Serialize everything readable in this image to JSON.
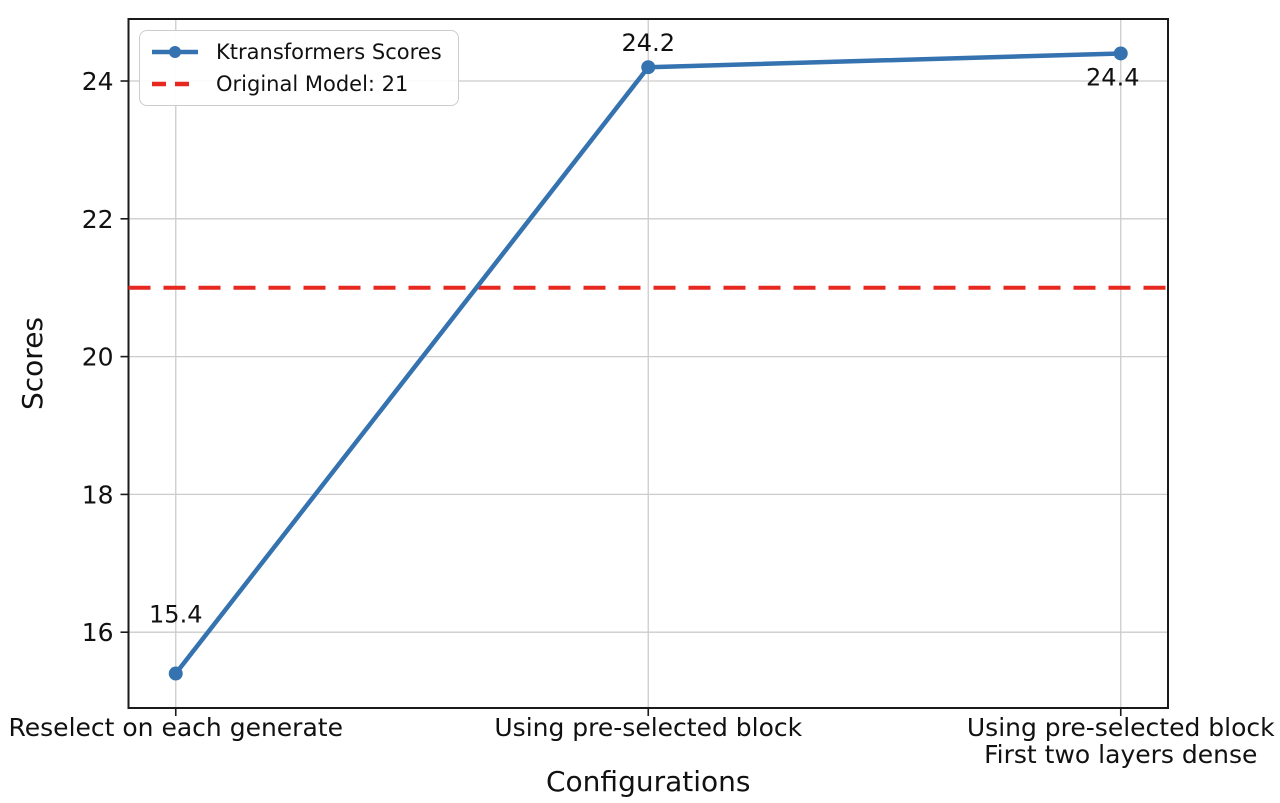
{
  "chart_data": {
    "type": "line",
    "title": "",
    "xlabel": "Configurations",
    "ylabel": "Scores",
    "categories": [
      "Reselect on each generate",
      "Using pre-selected block",
      "Using pre-selected block\nFirst two layers dense"
    ],
    "series": [
      {
        "name": "Ktransformers Scores",
        "values": [
          15.4,
          24.2,
          24.4
        ],
        "color": "#3572b0",
        "style": "solid",
        "marker": "circle"
      }
    ],
    "reference_line": {
      "label": "Original Model: 21",
      "value": 21,
      "color": "#e62820",
      "style": "dashed"
    },
    "point_labels": [
      "15.4",
      "24.2",
      "24.4"
    ],
    "yticks": [
      16,
      18,
      20,
      22,
      24
    ],
    "ylim": [
      14.9,
      24.9
    ],
    "grid": true,
    "legend": {
      "position": "upper-left",
      "entries": [
        "Ktransformers Scores",
        "Original Model: 21"
      ]
    }
  }
}
